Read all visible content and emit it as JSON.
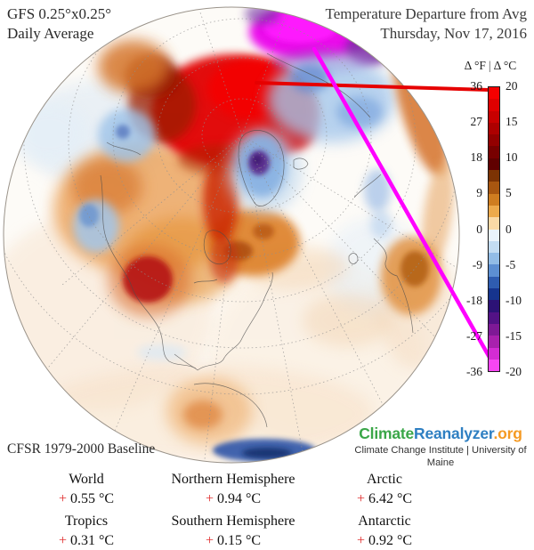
{
  "header": {
    "left_line1": "GFS 0.25°x0.25°",
    "left_line2": "Daily Average",
    "right_line1": "Temperature Departure from Avg",
    "right_line2": "Thursday, Nov 17, 2016"
  },
  "colorbar": {
    "title_f": "Δ °F",
    "separator": "|",
    "title_c": "Δ °C",
    "f_ticks": [
      "36",
      "27",
      "18",
      "9",
      "0",
      "-9",
      "-18",
      "-27",
      "-36"
    ],
    "c_ticks": [
      "20",
      "15",
      "10",
      "5",
      "0",
      "-5",
      "-10",
      "-15",
      "-20"
    ],
    "colors_top_to_bottom": [
      "#f50000",
      "#df0000",
      "#c80000",
      "#ad0000",
      "#930000",
      "#780000",
      "#600000",
      "#7c3304",
      "#a85610",
      "#cf7d20",
      "#edaa4c",
      "#fad9a6",
      "#eaf3fb",
      "#c3dcf2",
      "#92bce6",
      "#5d8fd2",
      "#2f5cb0",
      "#16348e",
      "#2c1276",
      "#531286",
      "#7e1996",
      "#a821ae",
      "#d32cd4",
      "#f846f2"
    ]
  },
  "annotations": {
    "warm_line_color": "#e60000",
    "cold_line_color": "#ff00ff"
  },
  "footer": {
    "baseline_label": "CFSR 1979-2000 Baseline",
    "logo_climate": "Climate",
    "logo_reanalyzer": "Reanalyzer",
    "logo_org": ".org",
    "logo_colors": {
      "climate": "#3aa648",
      "reanalyzer": "#2e7fc2",
      "org": "#f59a23"
    },
    "affiliation": "Climate Change Institute | University of Maine"
  },
  "stats": {
    "rows": [
      [
        {
          "label": "World",
          "sign": "+",
          "value": "0.55 °C"
        },
        {
          "label": "Northern Hemisphere",
          "sign": "+",
          "value": "0.94 °C"
        },
        {
          "label": "Arctic",
          "sign": "+",
          "value": "6.42 °C"
        }
      ],
      [
        {
          "label": "Tropics",
          "sign": "+",
          "value": "0.31 °C"
        },
        {
          "label": "Southern Hemisphere",
          "sign": "+",
          "value": "0.15 °C"
        },
        {
          "label": "Antarctic",
          "sign": "+",
          "value": "0.92 °C"
        }
      ]
    ]
  }
}
